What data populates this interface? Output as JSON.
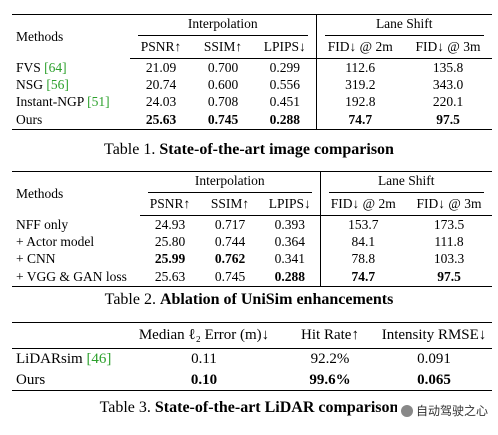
{
  "tables": [
    {
      "header": {
        "methods": "Methods",
        "groups": [
          "Interpolation",
          "Lane Shift"
        ],
        "columns": [
          "PSNR↑",
          "SSIM↑",
          "LPIPS↓",
          "FID↓ @ 2m",
          "FID↓ @ 3m"
        ]
      },
      "rows": [
        {
          "method": "FVS",
          "ref": "[64]",
          "cells": [
            "21.09",
            "0.700",
            "0.299",
            "112.6",
            "135.8"
          ]
        },
        {
          "method": "NSG",
          "ref": "[56]",
          "cells": [
            "20.74",
            "0.600",
            "0.556",
            "319.2",
            "343.0"
          ]
        },
        {
          "method": "Instant-NGP",
          "ref": "[51]",
          "cells": [
            "24.03",
            "0.708",
            "0.451",
            "192.8",
            "220.1"
          ]
        },
        {
          "method": "Ours",
          "cells": [
            "25.63",
            "0.745",
            "0.288",
            "74.7",
            "97.5"
          ]
        }
      ],
      "caption": {
        "label": "Table 1.",
        "title": "State-of-the-art image comparison"
      }
    },
    {
      "header": {
        "methods": "Methods",
        "groups": [
          "Interpolation",
          "Lane Shift"
        ],
        "columns": [
          "PSNR↑",
          "SSIM↑",
          "LPIPS↓",
          "FID↓ @ 2m",
          "FID↓ @ 3m"
        ]
      },
      "rows": [
        {
          "method": "NFF only",
          "cells": [
            "24.93",
            "0.717",
            "0.393",
            "153.7",
            "173.5"
          ]
        },
        {
          "method": "+ Actor model",
          "cells": [
            "25.80",
            "0.744",
            "0.364",
            "84.1",
            "111.8"
          ]
        },
        {
          "method": "+ CNN",
          "cells": [
            "25.99",
            "0.762",
            "0.341",
            "78.8",
            "103.3"
          ]
        },
        {
          "method": "+ VGG & GAN loss",
          "cells": [
            "25.63",
            "0.745",
            "0.288",
            "74.7",
            "97.5"
          ]
        }
      ],
      "caption": {
        "label": "Table 2.",
        "title": "Ablation of UniSim enhancements"
      }
    },
    {
      "header": {
        "columns": [
          "Median ℓ₂ Error (m)↓",
          "Hit Rate↑",
          "Intensity RMSE↓"
        ]
      },
      "rows": [
        {
          "method": "LiDARsim",
          "ref": "[46]",
          "cells": [
            "0.11",
            "92.2%",
            "0.091"
          ]
        },
        {
          "method": "Ours",
          "cells": [
            "0.10",
            "99.6%",
            "0.065"
          ]
        }
      ],
      "caption": {
        "label": "Table 3.",
        "title": "State-of-the-art LiDAR comparison"
      }
    }
  ],
  "watermark": "自动驾驶之心"
}
